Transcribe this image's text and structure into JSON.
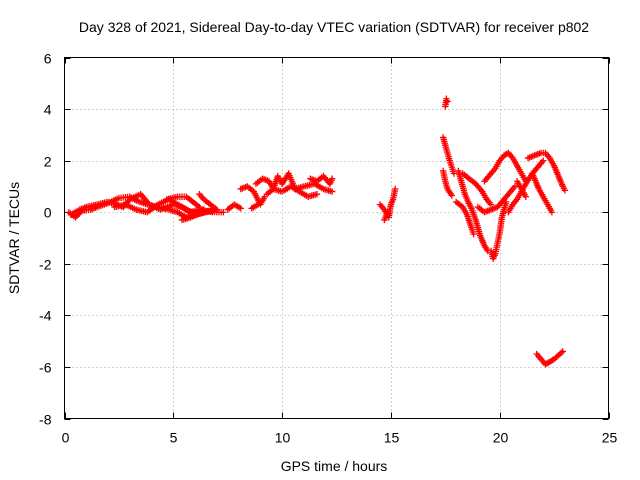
{
  "chart_data": {
    "type": "scatter",
    "title": "Day 328 of 2021, Sidereal Day-to-day VTEC variation (SDTVAR) for receiver p802",
    "xlabel": "GPS time / hours",
    "ylabel": "SDTVAR / TECUs",
    "xlim": [
      0,
      25
    ],
    "ylim": [
      -8,
      6
    ],
    "xticks": [
      0,
      5,
      10,
      15,
      20,
      25
    ],
    "yticks": [
      -8,
      -6,
      -4,
      -2,
      0,
      2,
      4,
      6
    ],
    "grid": true,
    "marker": "+",
    "series_color": "#ff0000",
    "segments": [
      [
        [
          0.2,
          0.0
        ],
        [
          0.5,
          -0.2
        ],
        [
          0.8,
          0.05
        ],
        [
          1.2,
          0.1
        ],
        [
          1.5,
          0.2
        ],
        [
          2.0,
          0.35
        ],
        [
          2.5,
          0.55
        ],
        [
          3.0,
          0.6
        ],
        [
          3.3,
          0.45
        ],
        [
          3.8,
          0.3
        ],
        [
          4.3,
          0.2
        ],
        [
          4.8,
          0.1
        ],
        [
          5.2,
          0.0
        ],
        [
          5.6,
          -0.2
        ],
        [
          6.0,
          -0.1
        ],
        [
          6.5,
          0.0
        ],
        [
          7.0,
          0.1
        ]
      ],
      [
        [
          0.3,
          -0.1
        ],
        [
          0.7,
          0.1
        ],
        [
          1.0,
          0.2
        ],
        [
          1.5,
          0.3
        ],
        [
          2.0,
          0.4
        ],
        [
          2.4,
          0.3
        ],
        [
          2.7,
          0.2
        ],
        [
          3.0,
          0.5
        ],
        [
          3.5,
          0.7
        ],
        [
          3.9,
          0.3
        ],
        [
          4.4,
          0.1
        ],
        [
          5.0,
          0.3
        ],
        [
          5.4,
          0.2
        ],
        [
          5.8,
          0.0
        ],
        [
          6.2,
          0.1
        ],
        [
          6.8,
          0.0
        ]
      ],
      [
        [
          2.3,
          0.2
        ],
        [
          2.8,
          0.3
        ],
        [
          3.3,
          0.1
        ],
        [
          3.8,
          0.0
        ],
        [
          4.3,
          0.3
        ],
        [
          4.8,
          0.5
        ],
        [
          5.2,
          0.3
        ],
        [
          5.6,
          0.1
        ],
        [
          6.0,
          -0.05
        ],
        [
          6.4,
          0.1
        ]
      ],
      [
        [
          4.7,
          0.5
        ],
        [
          5.2,
          0.6
        ],
        [
          5.6,
          0.6
        ],
        [
          5.9,
          0.4
        ],
        [
          6.2,
          0.2
        ]
      ],
      [
        [
          5.4,
          -0.3
        ],
        [
          5.8,
          -0.2
        ],
        [
          6.2,
          -0.05
        ],
        [
          6.6,
          0.05
        ],
        [
          7.0,
          0.0
        ],
        [
          7.3,
          0.0
        ]
      ],
      [
        [
          6.2,
          0.7
        ],
        [
          6.4,
          0.5
        ],
        [
          6.7,
          0.3
        ],
        [
          7.0,
          0.1
        ]
      ],
      [
        [
          7.5,
          0.1
        ],
        [
          7.8,
          0.3
        ],
        [
          8.1,
          0.15
        ]
      ],
      [
        [
          8.1,
          0.9
        ],
        [
          8.4,
          1.0
        ],
        [
          8.7,
          0.8
        ],
        [
          9.0,
          0.3
        ],
        [
          9.2,
          0.6
        ]
      ],
      [
        [
          8.6,
          0.15
        ],
        [
          8.9,
          0.3
        ]
      ],
      [
        [
          8.8,
          1.1
        ],
        [
          9.1,
          1.3
        ],
        [
          9.4,
          1.2
        ],
        [
          9.6,
          0.9
        ],
        [
          9.8,
          1.4
        ],
        [
          10.0,
          1.1
        ],
        [
          10.3,
          1.5
        ],
        [
          10.6,
          0.9
        ],
        [
          11.0,
          1.0
        ],
        [
          11.5,
          1.1
        ],
        [
          11.9,
          0.9
        ],
        [
          12.3,
          0.8
        ]
      ],
      [
        [
          9.3,
          0.7
        ],
        [
          9.6,
          0.9
        ],
        [
          10.0,
          0.8
        ],
        [
          10.4,
          1.0
        ],
        [
          10.8,
          0.8
        ],
        [
          11.2,
          0.6
        ],
        [
          11.6,
          0.7
        ]
      ],
      [
        [
          11.3,
          1.3
        ],
        [
          11.6,
          1.2
        ],
        [
          11.9,
          1.4
        ],
        [
          12.2,
          1.1
        ],
        [
          12.3,
          1.3
        ]
      ],
      [
        [
          14.5,
          0.3
        ],
        [
          14.7,
          0.1
        ],
        [
          14.9,
          -0.2
        ],
        [
          15.0,
          0.3
        ],
        [
          15.1,
          0.5
        ],
        [
          15.2,
          0.9
        ]
      ],
      [
        [
          14.7,
          -0.3
        ],
        [
          14.85,
          0.0
        ]
      ],
      [
        [
          17.5,
          4.1
        ],
        [
          17.55,
          4.4
        ],
        [
          17.6,
          4.3
        ]
      ],
      [
        [
          17.4,
          2.9
        ],
        [
          17.5,
          2.6
        ],
        [
          17.6,
          2.3
        ],
        [
          17.7,
          2.0
        ],
        [
          17.8,
          1.75
        ],
        [
          17.9,
          1.5
        ]
      ],
      [
        [
          17.4,
          1.6
        ],
        [
          17.5,
          1.2
        ],
        [
          17.6,
          0.9
        ],
        [
          17.8,
          0.65
        ]
      ],
      [
        [
          18.1,
          1.6
        ],
        [
          18.2,
          1.3
        ],
        [
          18.3,
          1.0
        ],
        [
          18.4,
          0.7
        ],
        [
          18.55,
          0.4
        ],
        [
          18.7,
          0.15
        ],
        [
          18.9,
          -0.3
        ],
        [
          19.1,
          -0.9
        ],
        [
          19.3,
          -1.3
        ],
        [
          19.45,
          -1.5
        ]
      ],
      [
        [
          18.0,
          0.4
        ],
        [
          18.3,
          0.2
        ],
        [
          18.5,
          -0.1
        ],
        [
          18.7,
          -0.6
        ],
        [
          18.8,
          -0.85
        ]
      ],
      [
        [
          18.3,
          1.5
        ],
        [
          18.6,
          1.3
        ],
        [
          18.9,
          1.1
        ],
        [
          19.2,
          0.8
        ],
        [
          19.4,
          0.5
        ],
        [
          19.6,
          0.3
        ]
      ],
      [
        [
          19.0,
          0.2
        ],
        [
          19.3,
          0.0
        ],
        [
          19.6,
          0.1
        ],
        [
          19.9,
          0.2
        ],
        [
          20.2,
          0.5
        ],
        [
          20.5,
          0.8
        ],
        [
          20.7,
          1.0
        ]
      ],
      [
        [
          19.3,
          1.2
        ],
        [
          19.6,
          1.5
        ],
        [
          19.8,
          1.7
        ],
        [
          20.0,
          2.0
        ],
        [
          20.2,
          2.2
        ],
        [
          20.4,
          2.3
        ],
        [
          20.6,
          2.1
        ],
        [
          20.8,
          1.8
        ],
        [
          21.0,
          1.5
        ],
        [
          21.2,
          1.2
        ]
      ],
      [
        [
          19.6,
          -1.5
        ],
        [
          19.7,
          -1.8
        ],
        [
          19.8,
          -1.6
        ],
        [
          19.9,
          -1.2
        ],
        [
          20.0,
          -0.8
        ],
        [
          20.1,
          -0.2
        ],
        [
          20.3,
          0.4
        ]
      ],
      [
        [
          20.4,
          0.0
        ],
        [
          20.6,
          0.3
        ],
        [
          20.8,
          0.5
        ],
        [
          21.0,
          0.8
        ],
        [
          21.2,
          1.1
        ],
        [
          21.5,
          1.5
        ],
        [
          21.8,
          1.8
        ],
        [
          22.0,
          2.0
        ]
      ],
      [
        [
          21.3,
          2.1
        ],
        [
          21.6,
          2.2
        ],
        [
          21.9,
          2.3
        ],
        [
          22.1,
          2.3
        ],
        [
          22.3,
          2.1
        ],
        [
          22.5,
          1.8
        ],
        [
          22.7,
          1.4
        ],
        [
          22.9,
          1.0
        ],
        [
          23.0,
          0.85
        ]
      ],
      [
        [
          21.5,
          1.5
        ],
        [
          21.7,
          1.1
        ],
        [
          21.8,
          0.9
        ],
        [
          22.0,
          0.6
        ],
        [
          22.2,
          0.3
        ],
        [
          22.4,
          0.0
        ]
      ],
      [
        [
          20.8,
          1.2
        ],
        [
          21.0,
          0.9
        ],
        [
          21.2,
          0.6
        ]
      ],
      [
        [
          21.7,
          -5.5
        ],
        [
          21.9,
          -5.7
        ],
        [
          22.1,
          -5.9
        ],
        [
          22.3,
          -5.8
        ],
        [
          22.5,
          -5.7
        ],
        [
          22.7,
          -5.55
        ],
        [
          22.9,
          -5.4
        ]
      ]
    ]
  }
}
